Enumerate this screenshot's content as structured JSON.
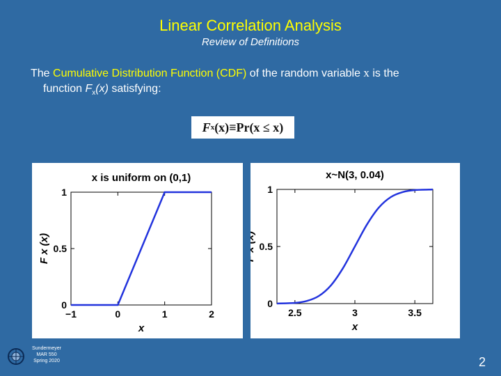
{
  "slide": {
    "title": "Linear Correlation Analysis",
    "subtitle": "Review of Definitions",
    "body": {
      "part1": "The ",
      "highlight": "Cumulative Distribution Function (CDF)",
      "part2": " of the random variable ",
      "var": "x",
      "part3": " is the",
      "line2_prefix": "function ",
      "line2_F": "F",
      "line2_sub": "x",
      "line2_arg": "(x)",
      "line2_suffix": " satisfying:"
    },
    "equation": {
      "lhs_F": "F",
      "lhs_sub": "x",
      "lhs_arg": "(x)",
      "eq": "≡",
      "rhs": "Pr(x ≤ x)"
    },
    "footer": {
      "line1": "Sundermeyer",
      "line2": "MAR 550",
      "line3": "Spring 2020"
    },
    "page_number": "2"
  },
  "chart_data": [
    {
      "type": "line",
      "title": "x is uniform on (0,1)",
      "xlabel": "x",
      "ylabel": "F x (x)",
      "xlim": [
        -1,
        2
      ],
      "ylim": [
        0,
        1
      ],
      "xticks": [
        "−1",
        "0",
        "1",
        "2"
      ],
      "yticks": [
        "0",
        "0.5",
        "1"
      ],
      "series": [
        {
          "x": [
            -1,
            0,
            1,
            2
          ],
          "y": [
            0,
            0,
            1,
            1
          ],
          "color": "#2233dd"
        }
      ],
      "reference_lines": [
        0,
        1
      ]
    },
    {
      "type": "line",
      "title": "x~N(3, 0.04)",
      "xlabel": "x",
      "ylabel": "F x (x)",
      "xlim": [
        2.35,
        3.65
      ],
      "ylim": [
        0,
        1
      ],
      "xticks": [
        "2.5",
        "3",
        "3.5"
      ],
      "yticks": [
        "0",
        "0.5",
        "1"
      ],
      "series": [
        {
          "x": [
            2.35,
            2.5,
            2.6,
            2.7,
            2.8,
            2.9,
            3.0,
            3.1,
            3.2,
            3.3,
            3.4,
            3.5,
            3.65
          ],
          "y": [
            0.001,
            0.006,
            0.023,
            0.067,
            0.159,
            0.309,
            0.5,
            0.691,
            0.841,
            0.933,
            0.977,
            0.994,
            0.999
          ],
          "color": "#2233dd"
        }
      ]
    }
  ]
}
